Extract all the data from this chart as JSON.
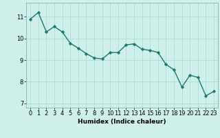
{
  "x": [
    0,
    1,
    2,
    3,
    4,
    5,
    6,
    7,
    8,
    9,
    10,
    11,
    12,
    13,
    14,
    15,
    16,
    17,
    18,
    19,
    20,
    21,
    22,
    23
  ],
  "y": [
    10.9,
    11.2,
    10.3,
    10.55,
    10.3,
    9.78,
    9.55,
    9.3,
    9.1,
    9.05,
    9.35,
    9.35,
    9.7,
    9.75,
    9.5,
    9.45,
    9.35,
    8.8,
    8.55,
    7.75,
    8.3,
    8.2,
    7.35,
    7.55
  ],
  "line_color": "#1a7a6a",
  "marker": "D",
  "marker_size": 2.2,
  "line_width": 1.0,
  "bg_color": "#cff0ea",
  "grid_color": "#aaddd6",
  "xlabel": "Humidex (Indice chaleur)",
  "ylim": [
    6.8,
    11.65
  ],
  "xlim": [
    -0.5,
    23.5
  ],
  "yticks": [
    7,
    8,
    9,
    10,
    11
  ],
  "xticks": [
    0,
    1,
    2,
    3,
    4,
    5,
    6,
    7,
    8,
    9,
    10,
    11,
    12,
    13,
    14,
    15,
    16,
    17,
    18,
    19,
    20,
    21,
    22,
    23
  ],
  "label_fontsize": 6.5,
  "tick_fontsize": 6.0
}
